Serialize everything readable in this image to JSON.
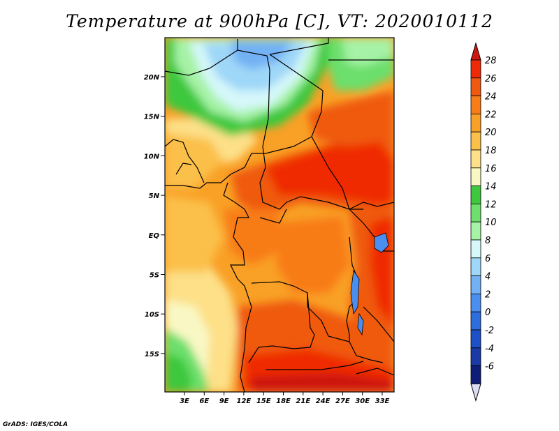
{
  "title": "Temperature at 900hPa [C], VT: 2020010112",
  "credit": "GrADS: IGES/COLA",
  "map": {
    "lat_labels": [
      "20N",
      "15N",
      "10N",
      "5N",
      "EQ",
      "5S",
      "10S",
      "15S"
    ],
    "lon_labels": [
      "3E",
      "6E",
      "9E",
      "12E",
      "15E",
      "18E",
      "21E",
      "24E",
      "27E",
      "30E",
      "33E"
    ]
  },
  "colorbar": {
    "levels": [
      "28",
      "26",
      "24",
      "22",
      "20",
      "18",
      "16",
      "14",
      "12",
      "10",
      "8",
      "6",
      "4",
      "2",
      "0",
      "-2",
      "-4",
      "-6"
    ],
    "colors": [
      "#ef2a06",
      "#ef5a10",
      "#f87c18",
      "#f9a026",
      "#fbc04a",
      "#fde088",
      "#f9f8c4",
      "#3ec83d",
      "#6cdf6c",
      "#a6f2a6",
      "#d6f8fa",
      "#9fd7f8",
      "#72b1f4",
      "#4a8ff0",
      "#2e6edc",
      "#1e50c8",
      "#1a3aa6",
      "#0e1e78"
    ],
    "top_color": "#cc1810",
    "bottom_color": "#dcdcf4"
  }
}
